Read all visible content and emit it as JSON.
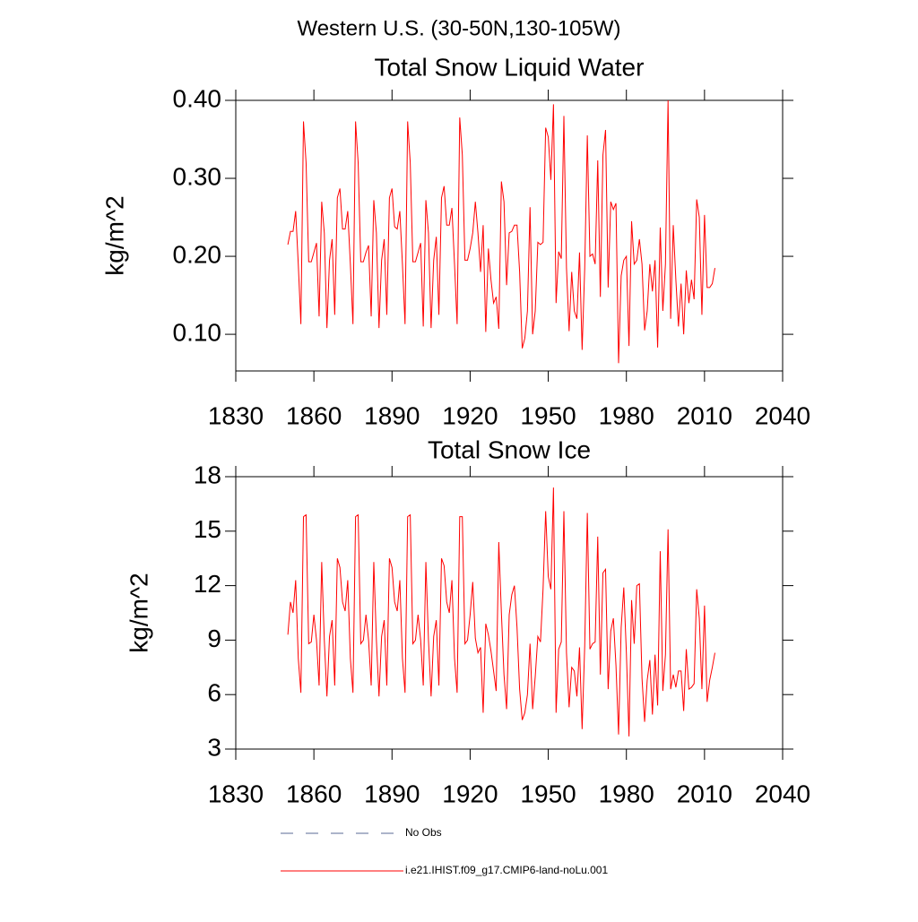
{
  "title": "Western U.S. (30-50N,130-105W)",
  "legend": [
    {
      "name": "No Obs",
      "color": "#5a6a94",
      "style": "dashed"
    }
  ],
  "chart_data": [
    {
      "type": "line",
      "title": "Total Snow Liquid Water",
      "ylabel": "kg/m^2",
      "x": [
        1850,
        1851,
        1852,
        1853,
        1854,
        1855,
        1856,
        1857,
        1858,
        1859,
        1860,
        1861,
        1862,
        1863,
        1864,
        1865,
        1866,
        1867,
        1868,
        1869,
        1870,
        1871,
        1872,
        1873,
        1874,
        1875,
        1876,
        1877,
        1878,
        1879,
        1880,
        1881,
        1882,
        1883,
        1884,
        1885,
        1886,
        1887,
        1888,
        1889,
        1890,
        1891,
        1892,
        1893,
        1894,
        1895,
        1896,
        1897,
        1898,
        1899,
        1900,
        1901,
        1902,
        1903,
        1904,
        1905,
        1906,
        1907,
        1908,
        1909,
        1910,
        1911,
        1912,
        1913,
        1914,
        1915,
        1916,
        1917,
        1918,
        1919,
        1920,
        1921,
        1922,
        1923,
        1924,
        1925,
        1926,
        1927,
        1928,
        1929,
        1930,
        1931,
        1932,
        1933,
        1934,
        1935,
        1936,
        1937,
        1938,
        1939,
        1940,
        1941,
        1942,
        1943,
        1944,
        1945,
        1946,
        1947,
        1948,
        1949,
        1950,
        1951,
        1952,
        1953,
        1954,
        1955,
        1956,
        1957,
        1958,
        1959,
        1960,
        1961,
        1962,
        1963,
        1964,
        1965,
        1966,
        1967,
        1968,
        1969,
        1970,
        1971,
        1972,
        1973,
        1974,
        1975,
        1976,
        1977,
        1978,
        1979,
        1980,
        1981,
        1982,
        1983,
        1984,
        1985,
        1986,
        1987,
        1988,
        1989,
        1990,
        1991,
        1992,
        1993,
        1994,
        1995,
        1996,
        1997,
        1998,
        1999,
        2000,
        2001,
        2002,
        2003,
        2004,
        2005,
        2006,
        2007,
        2008,
        2009,
        2010,
        2011,
        2012,
        2013,
        2014
      ],
      "series": [
        {
          "name": "i.e21.IHIST.f09_g17.CMIP6-land-noLu.001",
          "color": "#ff0000",
          "values": [
            0.215,
            0.232,
            0.232,
            0.258,
            0.19,
            0.113,
            0.373,
            0.32,
            0.193,
            0.193,
            0.205,
            0.217,
            0.123,
            0.27,
            0.23,
            0.108,
            0.195,
            0.222,
            0.125,
            0.275,
            0.287,
            0.235,
            0.235,
            0.258,
            0.19,
            0.113,
            0.373,
            0.32,
            0.193,
            0.193,
            0.205,
            0.214,
            0.123,
            0.272,
            0.23,
            0.108,
            0.195,
            0.222,
            0.125,
            0.275,
            0.287,
            0.238,
            0.235,
            0.258,
            0.19,
            0.113,
            0.373,
            0.32,
            0.193,
            0.193,
            0.205,
            0.217,
            0.11,
            0.272,
            0.23,
            0.108,
            0.195,
            0.225,
            0.125,
            0.275,
            0.29,
            0.24,
            0.24,
            0.262,
            0.19,
            0.113,
            0.378,
            0.33,
            0.195,
            0.195,
            0.21,
            0.23,
            0.27,
            0.23,
            0.18,
            0.24,
            0.103,
            0.21,
            0.17,
            0.14,
            0.148,
            0.107,
            0.296,
            0.27,
            0.163,
            0.23,
            0.232,
            0.24,
            0.24,
            0.18,
            0.082,
            0.095,
            0.13,
            0.263,
            0.1,
            0.13,
            0.218,
            0.215,
            0.218,
            0.365,
            0.353,
            0.298,
            0.395,
            0.14,
            0.206,
            0.197,
            0.38,
            0.185,
            0.104,
            0.18,
            0.13,
            0.12,
            0.205,
            0.08,
            0.185,
            0.355,
            0.2,
            0.203,
            0.19,
            0.323,
            0.148,
            0.33,
            0.362,
            0.16,
            0.27,
            0.26,
            0.268,
            0.063,
            0.175,
            0.195,
            0.2,
            0.085,
            0.245,
            0.19,
            0.195,
            0.222,
            0.19,
            0.105,
            0.13,
            0.19,
            0.155,
            0.195,
            0.083,
            0.237,
            0.13,
            0.19,
            0.4,
            0.12,
            0.24,
            0.17,
            0.11,
            0.165,
            0.1,
            0.182,
            0.14,
            0.17,
            0.145,
            0.273,
            0.25,
            0.125,
            0.253,
            0.16,
            0.16,
            0.165,
            0.185
          ]
        }
      ],
      "xlim": [
        1830,
        2040
      ],
      "xticks": [
        1830,
        1860,
        1890,
        1920,
        1950,
        1980,
        2010,
        2040
      ],
      "ylim": [
        0.053,
        0.4
      ],
      "yticks": [
        {
          "value": 0.1,
          "label": "0.10"
        },
        {
          "value": 0.2,
          "label": "0.20"
        },
        {
          "value": 0.3,
          "label": "0.30"
        },
        {
          "value": 0.4,
          "label": "0.40"
        }
      ]
    },
    {
      "type": "line",
      "title": "Total Snow Ice",
      "ylabel": "kg/m^2",
      "x": [
        1850,
        1851,
        1852,
        1853,
        1854,
        1855,
        1856,
        1857,
        1858,
        1859,
        1860,
        1861,
        1862,
        1863,
        1864,
        1865,
        1866,
        1867,
        1868,
        1869,
        1870,
        1871,
        1872,
        1873,
        1874,
        1875,
        1876,
        1877,
        1878,
        1879,
        1880,
        1881,
        1882,
        1883,
        1884,
        1885,
        1886,
        1887,
        1888,
        1889,
        1890,
        1891,
        1892,
        1893,
        1894,
        1895,
        1896,
        1897,
        1898,
        1899,
        1900,
        1901,
        1902,
        1903,
        1904,
        1905,
        1906,
        1907,
        1908,
        1909,
        1910,
        1911,
        1912,
        1913,
        1914,
        1915,
        1916,
        1917,
        1918,
        1919,
        1920,
        1921,
        1922,
        1923,
        1924,
        1925,
        1926,
        1927,
        1928,
        1929,
        1930,
        1931,
        1932,
        1933,
        1934,
        1935,
        1936,
        1937,
        1938,
        1939,
        1940,
        1941,
        1942,
        1943,
        1944,
        1945,
        1946,
        1947,
        1948,
        1949,
        1950,
        1951,
        1952,
        1953,
        1954,
        1955,
        1956,
        1957,
        1958,
        1959,
        1960,
        1961,
        1962,
        1963,
        1964,
        1965,
        1966,
        1967,
        1968,
        1969,
        1970,
        1971,
        1972,
        1973,
        1974,
        1975,
        1976,
        1977,
        1978,
        1979,
        1980,
        1981,
        1982,
        1983,
        1984,
        1985,
        1986,
        1987,
        1988,
        1989,
        1990,
        1991,
        1992,
        1993,
        1994,
        1995,
        1996,
        1997,
        1998,
        1999,
        2000,
        2001,
        2002,
        2003,
        2004,
        2005,
        2006,
        2007,
        2008,
        2009,
        2010,
        2011,
        2012,
        2013,
        2014
      ],
      "series": [
        {
          "color": "#ff0000",
          "values": [
            9.3,
            11.1,
            10.5,
            12.3,
            8.0,
            6.1,
            15.8,
            15.9,
            8.8,
            8.9,
            10.4,
            9.0,
            6.5,
            13.3,
            9.0,
            5.9,
            9.2,
            10.1,
            6.5,
            13.5,
            13.0,
            11.1,
            10.6,
            12.3,
            8.0,
            6.1,
            15.8,
            15.9,
            8.8,
            9.0,
            10.4,
            9.0,
            6.5,
            13.3,
            9.0,
            5.9,
            9.2,
            10.1,
            6.5,
            13.5,
            13.0,
            11.1,
            10.6,
            12.3,
            8.0,
            6.1,
            15.8,
            15.9,
            8.8,
            9.0,
            10.4,
            9.0,
            6.5,
            13.3,
            9.0,
            5.9,
            9.2,
            10.1,
            6.5,
            13.5,
            13.1,
            11.1,
            10.5,
            12.3,
            8.0,
            6.1,
            15.8,
            15.8,
            8.8,
            9.0,
            10.4,
            12.2,
            9.1,
            8.3,
            8.6,
            5.0,
            9.9,
            9.3,
            8.4,
            7.3,
            6.2,
            14.4,
            10.5,
            7.1,
            5.2,
            10.4,
            11.5,
            12.0,
            9.7,
            6.3,
            4.6,
            5.0,
            6.0,
            8.8,
            5.2,
            7.0,
            9.2,
            8.9,
            11.8,
            16.1,
            12.5,
            11.8,
            17.4,
            5.0,
            8.5,
            8.9,
            16.1,
            8.3,
            5.3,
            7.5,
            7.3,
            5.9,
            8.6,
            4.1,
            8.7,
            16.0,
            8.5,
            8.8,
            8.9,
            14.7,
            7.1,
            12.7,
            12.9,
            6.3,
            9.5,
            10.2,
            7.6,
            3.8,
            9.7,
            11.9,
            8.3,
            3.7,
            11.2,
            8.8,
            12.0,
            12.1,
            6.9,
            4.5,
            6.8,
            7.9,
            4.9,
            8.2,
            5.4,
            13.9,
            6.2,
            8.2,
            15.1,
            6.3,
            7.1,
            6.4,
            7.3,
            7.3,
            5.1,
            8.5,
            6.3,
            6.4,
            6.6,
            11.8,
            10.2,
            6.3,
            10.9,
            5.6,
            6.8,
            7.5,
            8.3
          ]
        }
      ],
      "xlim": [
        1830,
        2040
      ],
      "xticks": [
        1830,
        1860,
        1890,
        1920,
        1950,
        1980,
        2010,
        2040
      ],
      "ylim": [
        3,
        18
      ],
      "yticks": [
        3,
        6,
        9,
        12,
        15,
        18
      ]
    }
  ]
}
